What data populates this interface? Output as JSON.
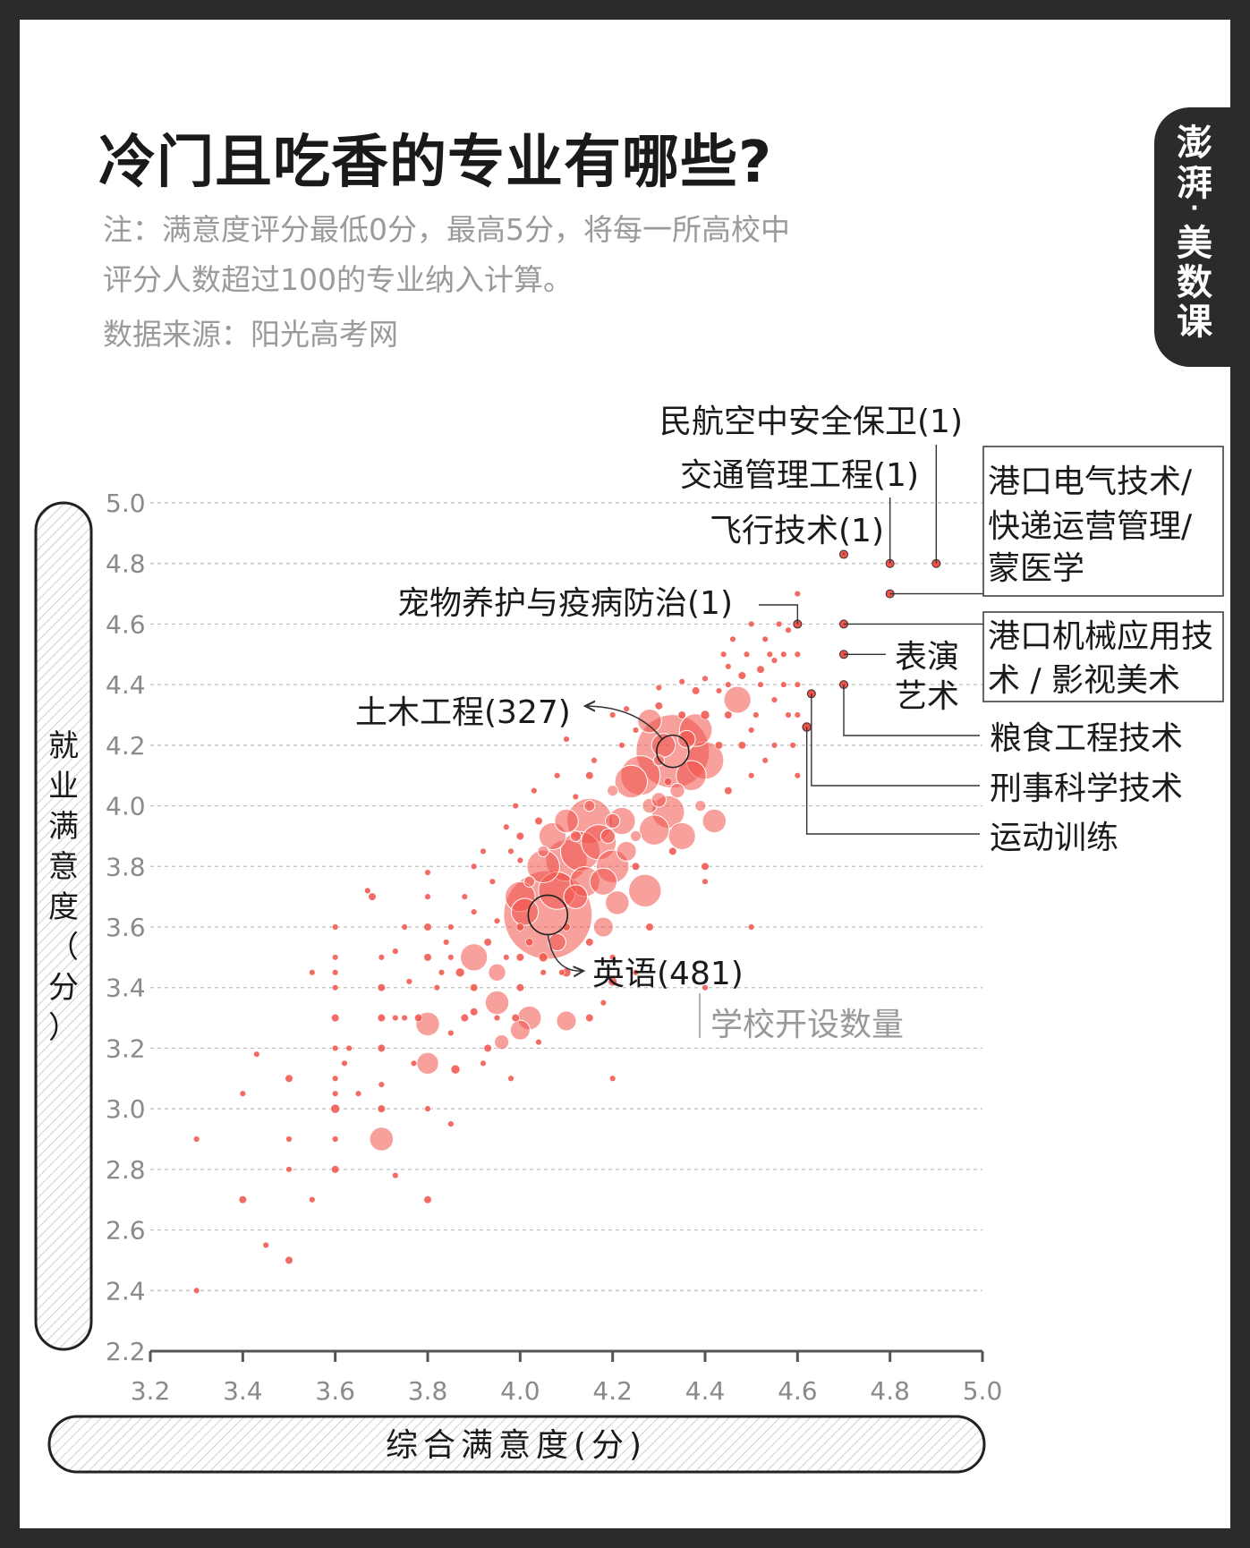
{
  "brand": {
    "chars": [
      "澎",
      "湃",
      "·",
      "美",
      "数",
      "课"
    ]
  },
  "title": "冷门且吃香的专业有哪些?",
  "notes": [
    "注：满意度评分最低0分，最高5分，将每一所高校中",
    "评分人数超过100的专业纳入计算。",
    "数据来源：阳光高考网"
  ],
  "colors": {
    "point": "#f0524a",
    "axis": "#555555",
    "grid": "#bfbfbf",
    "text": "#1a1a1a",
    "muted": "#999999"
  },
  "chart_data": {
    "type": "scatter",
    "xlabel": "综合满意度(分)",
    "ylabel": "就业满意度（分）",
    "xlim": [
      3.2,
      5.0
    ],
    "ylim": [
      2.2,
      5.0
    ],
    "x_ticks": [
      "3.2",
      "3.4",
      "3.6",
      "3.8",
      "4.0",
      "4.2",
      "4.4",
      "4.6",
      "4.8",
      "5.0"
    ],
    "y_ticks": [
      "5.0",
      "4.8",
      "4.6",
      "4.4",
      "4.2",
      "4.0",
      "3.8",
      "3.6",
      "3.4",
      "3.2",
      "3.0",
      "2.8",
      "2.6",
      "2.4",
      "2.2"
    ],
    "size_legend": "学校开设数量",
    "points": [
      {
        "x": 3.3,
        "y": 2.4,
        "n": 1
      },
      {
        "x": 3.3,
        "y": 2.9,
        "n": 1
      },
      {
        "x": 3.4,
        "y": 2.7,
        "n": 2
      },
      {
        "x": 3.4,
        "y": 3.05,
        "n": 1
      },
      {
        "x": 3.45,
        "y": 2.55,
        "n": 1
      },
      {
        "x": 3.43,
        "y": 3.18,
        "n": 1
      },
      {
        "x": 3.5,
        "y": 2.5,
        "n": 2
      },
      {
        "x": 3.5,
        "y": 2.8,
        "n": 1
      },
      {
        "x": 3.5,
        "y": 2.9,
        "n": 1
      },
      {
        "x": 3.5,
        "y": 3.1,
        "n": 2
      },
      {
        "x": 3.55,
        "y": 2.7,
        "n": 1
      },
      {
        "x": 3.55,
        "y": 3.45,
        "n": 1
      },
      {
        "x": 3.6,
        "y": 2.8,
        "n": 2
      },
      {
        "x": 3.6,
        "y": 2.9,
        "n": 1
      },
      {
        "x": 3.6,
        "y": 3.0,
        "n": 3
      },
      {
        "x": 3.6,
        "y": 3.05,
        "n": 1
      },
      {
        "x": 3.6,
        "y": 3.1,
        "n": 1
      },
      {
        "x": 3.6,
        "y": 3.2,
        "n": 1
      },
      {
        "x": 3.6,
        "y": 3.3,
        "n": 2
      },
      {
        "x": 3.6,
        "y": 3.4,
        "n": 1
      },
      {
        "x": 3.6,
        "y": 3.5,
        "n": 1
      },
      {
        "x": 3.6,
        "y": 3.6,
        "n": 1
      },
      {
        "x": 3.6,
        "y": 3.45,
        "n": 1
      },
      {
        "x": 3.62,
        "y": 3.15,
        "n": 1
      },
      {
        "x": 3.63,
        "y": 3.2,
        "n": 1
      },
      {
        "x": 3.65,
        "y": 3.05,
        "n": 1
      },
      {
        "x": 3.67,
        "y": 3.72,
        "n": 1
      },
      {
        "x": 3.7,
        "y": 2.9,
        "n": 30
      },
      {
        "x": 3.7,
        "y": 3.0,
        "n": 2
      },
      {
        "x": 3.7,
        "y": 3.08,
        "n": 1
      },
      {
        "x": 3.7,
        "y": 3.2,
        "n": 2
      },
      {
        "x": 3.7,
        "y": 3.3,
        "n": 2
      },
      {
        "x": 3.7,
        "y": 3.4,
        "n": 2
      },
      {
        "x": 3.7,
        "y": 3.5,
        "n": 1
      },
      {
        "x": 3.68,
        "y": 3.7,
        "n": 2
      },
      {
        "x": 3.73,
        "y": 2.78,
        "n": 1
      },
      {
        "x": 3.73,
        "y": 3.3,
        "n": 1
      },
      {
        "x": 3.73,
        "y": 3.52,
        "n": 1
      },
      {
        "x": 3.75,
        "y": 3.6,
        "n": 1
      },
      {
        "x": 3.75,
        "y": 3.3,
        "n": 1
      },
      {
        "x": 3.77,
        "y": 3.15,
        "n": 1
      },
      {
        "x": 3.78,
        "y": 3.3,
        "n": 2
      },
      {
        "x": 3.8,
        "y": 2.7,
        "n": 2
      },
      {
        "x": 3.8,
        "y": 3.0,
        "n": 1
      },
      {
        "x": 3.8,
        "y": 3.15,
        "n": 25
      },
      {
        "x": 3.8,
        "y": 3.28,
        "n": 30
      },
      {
        "x": 3.8,
        "y": 3.5,
        "n": 2
      },
      {
        "x": 3.8,
        "y": 3.6,
        "n": 2
      },
      {
        "x": 3.8,
        "y": 3.7,
        "n": 1
      },
      {
        "x": 3.8,
        "y": 3.78,
        "n": 1
      },
      {
        "x": 3.82,
        "y": 3.4,
        "n": 1
      },
      {
        "x": 3.84,
        "y": 3.55,
        "n": 1
      },
      {
        "x": 3.85,
        "y": 3.25,
        "n": 1
      },
      {
        "x": 3.85,
        "y": 3.6,
        "n": 1
      },
      {
        "x": 3.85,
        "y": 2.95,
        "n": 1
      },
      {
        "x": 3.86,
        "y": 3.13,
        "n": 3
      },
      {
        "x": 3.87,
        "y": 3.45,
        "n": 3
      },
      {
        "x": 3.88,
        "y": 3.3,
        "n": 2
      },
      {
        "x": 3.88,
        "y": 3.7,
        "n": 1
      },
      {
        "x": 3.9,
        "y": 3.5,
        "n": 40
      },
      {
        "x": 3.9,
        "y": 3.32,
        "n": 2
      },
      {
        "x": 3.9,
        "y": 3.65,
        "n": 1
      },
      {
        "x": 3.9,
        "y": 3.4,
        "n": 2
      },
      {
        "x": 3.9,
        "y": 3.8,
        "n": 1
      },
      {
        "x": 3.93,
        "y": 3.55,
        "n": 2
      },
      {
        "x": 3.93,
        "y": 3.2,
        "n": 2
      },
      {
        "x": 3.94,
        "y": 3.75,
        "n": 1
      },
      {
        "x": 3.95,
        "y": 3.3,
        "n": 1
      },
      {
        "x": 3.95,
        "y": 3.45,
        "n": 15
      },
      {
        "x": 3.95,
        "y": 3.35,
        "n": 30
      },
      {
        "x": 3.95,
        "y": 3.62,
        "n": 1
      },
      {
        "x": 3.96,
        "y": 3.22,
        "n": 10
      },
      {
        "x": 3.97,
        "y": 3.5,
        "n": 1
      },
      {
        "x": 3.98,
        "y": 3.85,
        "n": 1
      },
      {
        "x": 3.98,
        "y": 3.1,
        "n": 1
      },
      {
        "x": 3.99,
        "y": 3.3,
        "n": 2
      },
      {
        "x": 4.0,
        "y": 3.5,
        "n": 2
      },
      {
        "x": 4.0,
        "y": 3.7,
        "n": 50
      },
      {
        "x": 4.0,
        "y": 3.82,
        "n": 1
      },
      {
        "x": 4.0,
        "y": 3.9,
        "n": 2
      },
      {
        "x": 4.0,
        "y": 3.6,
        "n": 2
      },
      {
        "x": 4.0,
        "y": 3.4,
        "n": 2
      },
      {
        "x": 4.0,
        "y": 3.26,
        "n": 20
      },
      {
        "x": 4.02,
        "y": 3.3,
        "n": 30
      },
      {
        "x": 4.01,
        "y": 3.65,
        "n": 40
      },
      {
        "x": 4.02,
        "y": 3.75,
        "n": 5
      },
      {
        "x": 4.02,
        "y": 3.55,
        "n": 2
      },
      {
        "x": 4.04,
        "y": 3.95,
        "n": 2
      },
      {
        "x": 4.05,
        "y": 3.45,
        "n": 1
      },
      {
        "x": 4.05,
        "y": 3.5,
        "n": 3
      },
      {
        "x": 4.05,
        "y": 3.8,
        "n": 60
      },
      {
        "x": 4.05,
        "y": 3.85,
        "n": 5
      },
      {
        "x": 4.06,
        "y": 3.64,
        "n": 481
      },
      {
        "x": 4.07,
        "y": 3.9,
        "n": 40
      },
      {
        "x": 4.08,
        "y": 3.72,
        "n": 80
      },
      {
        "x": 4.08,
        "y": 3.55,
        "n": 15
      },
      {
        "x": 4.09,
        "y": 3.45,
        "n": 1
      },
      {
        "x": 4.1,
        "y": 3.82,
        "n": 100
      },
      {
        "x": 4.1,
        "y": 3.95,
        "n": 30
      },
      {
        "x": 4.1,
        "y": 3.6,
        "n": 2
      },
      {
        "x": 4.1,
        "y": 3.45,
        "n": 3
      },
      {
        "x": 4.1,
        "y": 3.29,
        "n": 20
      },
      {
        "x": 4.12,
        "y": 3.9,
        "n": 5
      },
      {
        "x": 4.12,
        "y": 3.7,
        "n": 30
      },
      {
        "x": 4.13,
        "y": 3.85,
        "n": 90
      },
      {
        "x": 4.14,
        "y": 3.75,
        "n": 50
      },
      {
        "x": 4.15,
        "y": 3.95,
        "n": 120
      },
      {
        "x": 4.15,
        "y": 4.0,
        "n": 5
      },
      {
        "x": 4.15,
        "y": 3.55,
        "n": 2
      },
      {
        "x": 4.15,
        "y": 4.1,
        "n": 2
      },
      {
        "x": 4.15,
        "y": 3.3,
        "n": 2
      },
      {
        "x": 4.17,
        "y": 3.88,
        "n": 70
      },
      {
        "x": 4.18,
        "y": 3.6,
        "n": 20
      },
      {
        "x": 4.18,
        "y": 3.75,
        "n": 40
      },
      {
        "x": 4.19,
        "y": 3.9,
        "n": 10
      },
      {
        "x": 4.2,
        "y": 3.8,
        "n": 60
      },
      {
        "x": 4.2,
        "y": 3.95,
        "n": 10
      },
      {
        "x": 4.2,
        "y": 4.05,
        "n": 5
      },
      {
        "x": 4.2,
        "y": 3.5,
        "n": 1
      },
      {
        "x": 4.2,
        "y": 3.42,
        "n": 3
      },
      {
        "x": 4.2,
        "y": 3.1,
        "n": 1
      },
      {
        "x": 4.2,
        "y": 4.3,
        "n": 1
      },
      {
        "x": 4.21,
        "y": 3.68,
        "n": 30
      },
      {
        "x": 4.22,
        "y": 3.95,
        "n": 40
      },
      {
        "x": 4.23,
        "y": 3.85,
        "n": 20
      },
      {
        "x": 4.24,
        "y": 4.08,
        "n": 60
      },
      {
        "x": 4.25,
        "y": 3.9,
        "n": 5
      },
      {
        "x": 4.25,
        "y": 3.8,
        "n": 2
      },
      {
        "x": 4.26,
        "y": 4.1,
        "n": 90
      },
      {
        "x": 4.27,
        "y": 3.72,
        "n": 60
      },
      {
        "x": 4.28,
        "y": 4.0,
        "n": 10
      },
      {
        "x": 4.28,
        "y": 4.28,
        "n": 30
      },
      {
        "x": 4.28,
        "y": 3.6,
        "n": 2
      },
      {
        "x": 4.29,
        "y": 3.92,
        "n": 50
      },
      {
        "x": 4.3,
        "y": 4.15,
        "n": 5
      },
      {
        "x": 4.3,
        "y": 4.33,
        "n": 2
      },
      {
        "x": 4.3,
        "y": 4.02,
        "n": 10
      },
      {
        "x": 4.31,
        "y": 4.2,
        "n": 30
      },
      {
        "x": 4.32,
        "y": 3.98,
        "n": 60
      },
      {
        "x": 4.32,
        "y": 4.08,
        "n": 2
      },
      {
        "x": 4.33,
        "y": 4.18,
        "n": 327
      },
      {
        "x": 4.33,
        "y": 3.85,
        "n": 2
      },
      {
        "x": 4.34,
        "y": 4.05,
        "n": 10
      },
      {
        "x": 4.35,
        "y": 3.9,
        "n": 40
      },
      {
        "x": 4.35,
        "y": 4.3,
        "n": 2
      },
      {
        "x": 4.36,
        "y": 4.22,
        "n": 15
      },
      {
        "x": 4.37,
        "y": 4.1,
        "n": 50
      },
      {
        "x": 4.38,
        "y": 4.25,
        "n": 60
      },
      {
        "x": 4.38,
        "y": 4.38,
        "n": 2
      },
      {
        "x": 4.39,
        "y": 4.0,
        "n": 5
      },
      {
        "x": 4.4,
        "y": 4.15,
        "n": 80
      },
      {
        "x": 4.4,
        "y": 4.42,
        "n": 1
      },
      {
        "x": 4.4,
        "y": 4.3,
        "n": 3
      },
      {
        "x": 4.4,
        "y": 3.8,
        "n": 2
      },
      {
        "x": 4.4,
        "y": 3.75,
        "n": 1
      },
      {
        "x": 4.4,
        "y": 3.4,
        "n": 1
      },
      {
        "x": 4.42,
        "y": 3.95,
        "n": 30
      },
      {
        "x": 4.43,
        "y": 4.2,
        "n": 2
      },
      {
        "x": 4.44,
        "y": 4.5,
        "n": 1
      },
      {
        "x": 4.45,
        "y": 4.05,
        "n": 2
      },
      {
        "x": 4.45,
        "y": 4.3,
        "n": 2
      },
      {
        "x": 4.45,
        "y": 4.4,
        "n": 1
      },
      {
        "x": 4.46,
        "y": 4.55,
        "n": 1
      },
      {
        "x": 4.47,
        "y": 4.35,
        "n": 40
      },
      {
        "x": 4.48,
        "y": 4.43,
        "n": 2
      },
      {
        "x": 4.48,
        "y": 4.2,
        "n": 2
      },
      {
        "x": 4.49,
        "y": 4.5,
        "n": 1
      },
      {
        "x": 4.5,
        "y": 4.6,
        "n": 1
      },
      {
        "x": 4.5,
        "y": 4.25,
        "n": 1
      },
      {
        "x": 4.5,
        "y": 4.1,
        "n": 1
      },
      {
        "x": 4.5,
        "y": 3.6,
        "n": 1
      },
      {
        "x": 4.51,
        "y": 4.3,
        "n": 1
      },
      {
        "x": 4.52,
        "y": 4.45,
        "n": 2
      },
      {
        "x": 4.52,
        "y": 4.4,
        "n": 1
      },
      {
        "x": 4.53,
        "y": 4.55,
        "n": 1
      },
      {
        "x": 4.53,
        "y": 4.15,
        "n": 1
      },
      {
        "x": 4.54,
        "y": 4.5,
        "n": 1
      },
      {
        "x": 4.55,
        "y": 4.2,
        "n": 1
      },
      {
        "x": 4.55,
        "y": 4.35,
        "n": 1
      },
      {
        "x": 4.56,
        "y": 4.6,
        "n": 1
      },
      {
        "x": 4.57,
        "y": 4.5,
        "n": 1
      },
      {
        "x": 4.57,
        "y": 4.4,
        "n": 1
      },
      {
        "x": 4.58,
        "y": 4.3,
        "n": 1
      },
      {
        "x": 4.59,
        "y": 4.2,
        "n": 1
      },
      {
        "x": 4.6,
        "y": 4.1,
        "n": 1
      },
      {
        "x": 4.6,
        "y": 4.3,
        "n": 1
      },
      {
        "x": 4.6,
        "y": 4.4,
        "n": 1
      },
      {
        "x": 4.6,
        "y": 4.5,
        "n": 1
      },
      {
        "x": 4.6,
        "y": 4.6,
        "n": 1
      },
      {
        "x": 4.6,
        "y": 4.7,
        "n": 1
      },
      {
        "x": 4.58,
        "y": 4.58,
        "n": 1
      },
      {
        "x": 4.55,
        "y": 4.48,
        "n": 1
      },
      {
        "x": 4.45,
        "y": 4.46,
        "n": 1
      },
      {
        "x": 4.43,
        "y": 4.38,
        "n": 1
      },
      {
        "x": 4.35,
        "y": 4.41,
        "n": 1
      },
      {
        "x": 4.3,
        "y": 4.39,
        "n": 1
      },
      {
        "x": 4.25,
        "y": 4.25,
        "n": 1
      },
      {
        "x": 4.22,
        "y": 4.2,
        "n": 1
      },
      {
        "x": 4.23,
        "y": 4.32,
        "n": 1
      },
      {
        "x": 4.16,
        "y": 4.15,
        "n": 1
      },
      {
        "x": 4.12,
        "y": 4.03,
        "n": 1
      },
      {
        "x": 4.08,
        "y": 4.1,
        "n": 1
      },
      {
        "x": 4.1,
        "y": 4.22,
        "n": 1
      },
      {
        "x": 4.03,
        "y": 4.05,
        "n": 1
      },
      {
        "x": 3.99,
        "y": 4.0,
        "n": 1
      },
      {
        "x": 3.97,
        "y": 3.93,
        "n": 1
      },
      {
        "x": 3.92,
        "y": 3.85,
        "n": 1
      },
      {
        "x": 3.83,
        "y": 3.45,
        "n": 1
      },
      {
        "x": 3.85,
        "y": 3.5,
        "n": 1
      },
      {
        "x": 3.76,
        "y": 3.42,
        "n": 1
      },
      {
        "x": 3.92,
        "y": 3.15,
        "n": 1
      },
      {
        "x": 4.04,
        "y": 3.22,
        "n": 1
      },
      {
        "x": 4.25,
        "y": 3.45,
        "n": 1
      },
      {
        "x": 4.18,
        "y": 3.35,
        "n": 1
      },
      {
        "x": 4.62,
        "y": 4.26,
        "n": 5
      },
      {
        "x": 4.63,
        "y": 4.37,
        "n": 1
      },
      {
        "x": 4.7,
        "y": 4.4,
        "n": 1
      },
      {
        "x": 4.7,
        "y": 4.5,
        "n": 1
      },
      {
        "x": 4.7,
        "y": 4.6,
        "n": 1
      },
      {
        "x": 4.7,
        "y": 4.83,
        "n": 1
      },
      {
        "x": 4.8,
        "y": 4.8,
        "n": 1
      },
      {
        "x": 4.9,
        "y": 4.8,
        "n": 1
      },
      {
        "x": 4.8,
        "y": 4.7,
        "n": 1
      }
    ],
    "annotations": [
      {
        "text": "民航空中安全保卫(1)"
      },
      {
        "text": "交通管理工程(1)"
      },
      {
        "text": "飞行技术(1)"
      },
      {
        "text": "宠物养护与疫病防治(1)"
      },
      {
        "text": "土木工程(327)"
      },
      {
        "text": "英语(481)"
      },
      {
        "text": "表演"
      },
      {
        "text": "艺术"
      },
      {
        "text": "粮食工程技术"
      },
      {
        "text": "刑事科学技术"
      },
      {
        "text": "运动训练"
      }
    ],
    "boxed_labels": [
      {
        "lines": [
          "港口电气技术/",
          "快递运营管理/",
          "蒙医学"
        ]
      },
      {
        "lines": [
          "港口机械应用技",
          "术 / 影视美术"
        ]
      }
    ]
  }
}
